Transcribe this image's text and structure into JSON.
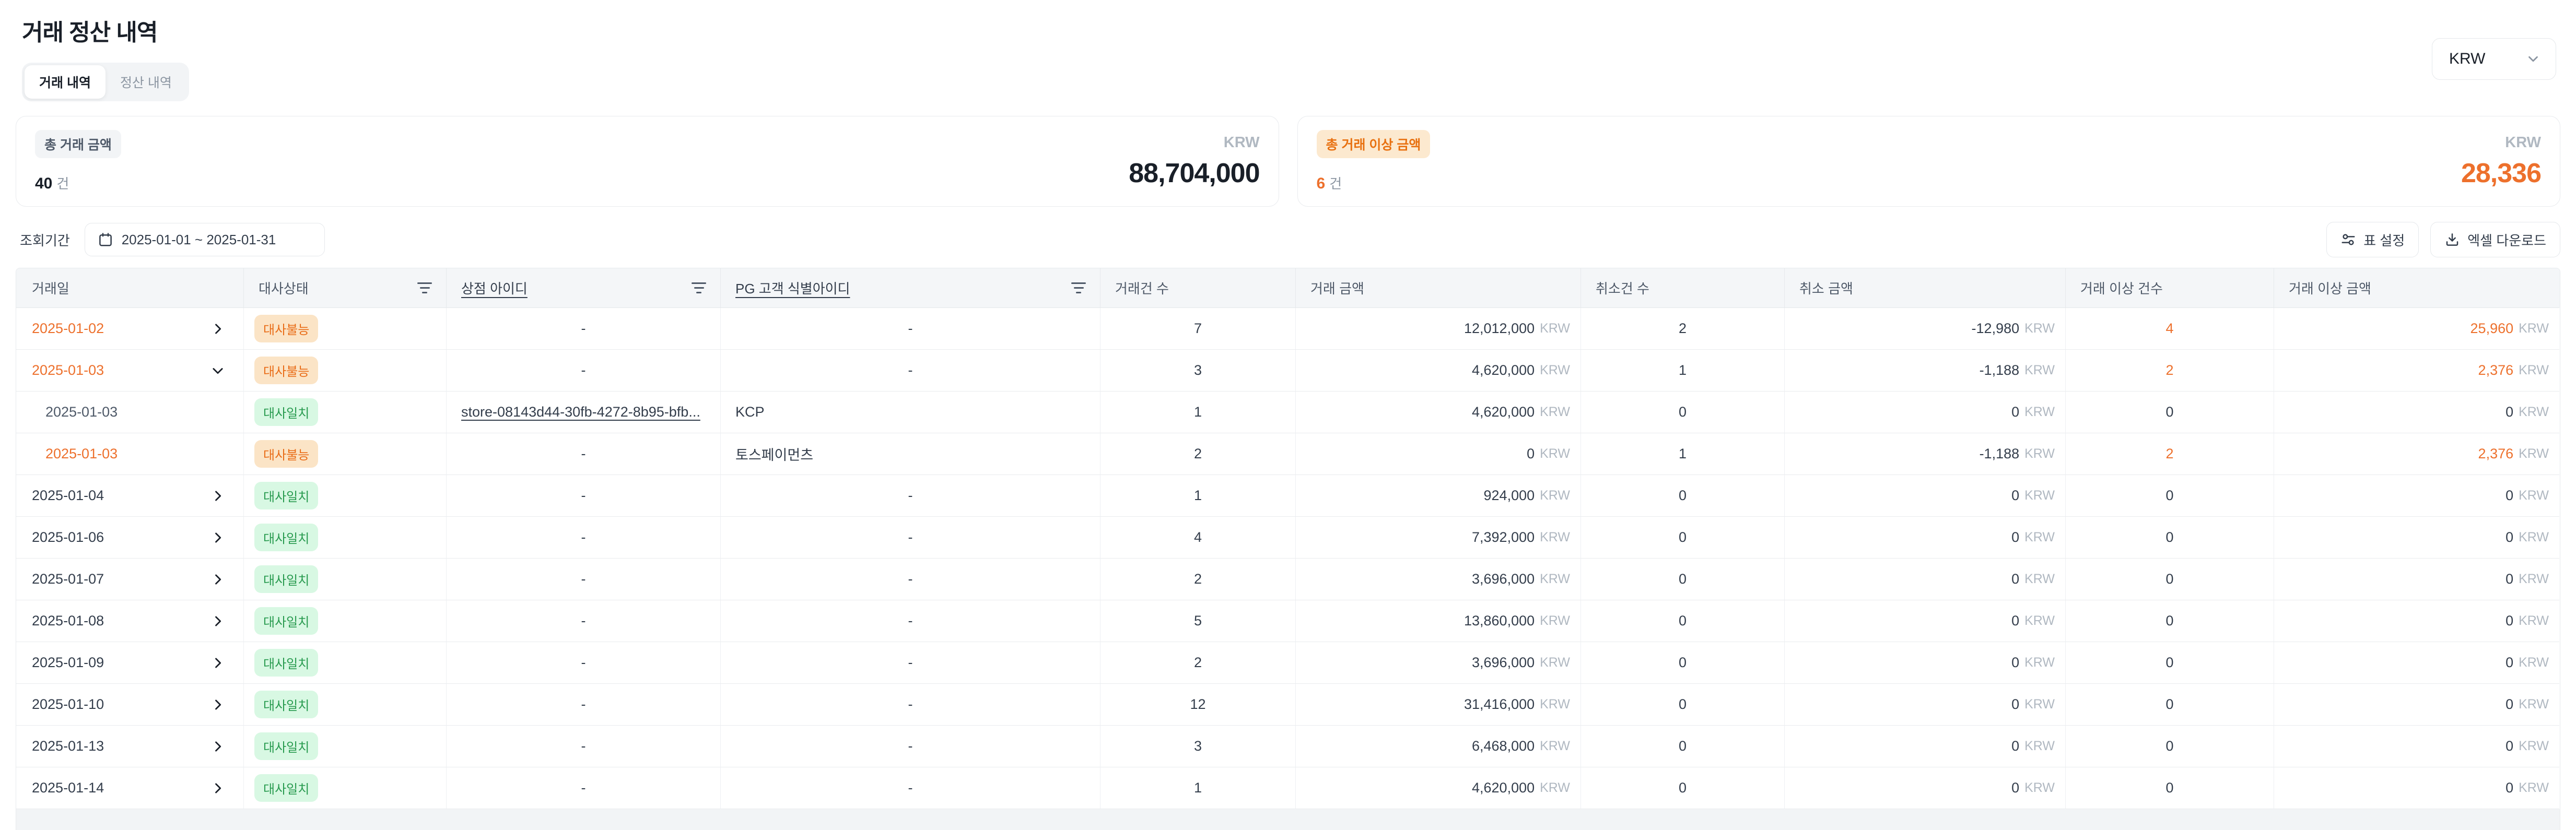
{
  "page": {
    "title": "거래 정산 내역"
  },
  "tabs": [
    {
      "label": "거래 내역",
      "active": true
    },
    {
      "label": "정산 내역",
      "active": false
    }
  ],
  "currency_select": {
    "value": "KRW"
  },
  "summary_cards": [
    {
      "badge": "총 거래 금액",
      "count": "40",
      "count_unit": "건",
      "currency": "KRW",
      "amount": "88,704,000",
      "variant": "default"
    },
    {
      "badge": "총 거래 이상 금액",
      "count": "6",
      "count_unit": "건",
      "currency": "KRW",
      "amount": "28,336",
      "variant": "warning"
    }
  ],
  "filter": {
    "label": "조회기간",
    "date_range": "2025-01-01 ~ 2025-01-31"
  },
  "actions": {
    "table_settings": "표 설정",
    "excel_download": "엑셀 다운로드"
  },
  "colors": {
    "accent_orange": "#ED702C",
    "badge_warning_bg": "#FBE4C6",
    "badge_warning_text": "#E96C17",
    "badge_success_bg": "#D8F8E3",
    "badge_success_text": "#279A4E"
  },
  "table": {
    "currency_suffix": "KRW",
    "columns": [
      {
        "key": "date",
        "label": "거래일",
        "filter": false,
        "underline": false
      },
      {
        "key": "status",
        "label": "대사상태",
        "filter": true,
        "underline": false
      },
      {
        "key": "store",
        "label": "상점 아이디",
        "filter": true,
        "underline": true
      },
      {
        "key": "pg",
        "label": "PG 고객 식별아이디",
        "filter": true,
        "underline": true
      },
      {
        "key": "tx_count",
        "label": "거래건 수",
        "filter": false,
        "underline": false
      },
      {
        "key": "tx_amount",
        "label": "거래 금액",
        "filter": false,
        "underline": false
      },
      {
        "key": "cancel_count",
        "label": "취소건 수",
        "filter": false,
        "underline": false
      },
      {
        "key": "cancel_amount",
        "label": "취소 금액",
        "filter": false,
        "underline": false
      },
      {
        "key": "anomaly_count",
        "label": "거래 이상 건수",
        "filter": false,
        "underline": false
      },
      {
        "key": "anomaly_amount",
        "label": "거래 이상 금액",
        "filter": false,
        "underline": false
      }
    ],
    "rows": [
      {
        "date": "2025-01-02",
        "date_variant": "orange",
        "indent": false,
        "expand": "right",
        "status": "대사불능",
        "status_variant": "warning",
        "store": "-",
        "store_is_link": false,
        "pg": "-",
        "tx_count": "7",
        "tx_amount": "12,012,000",
        "cancel_count": "2",
        "cancel_amount": "-12,980",
        "anomaly_count": "4",
        "anomaly_amount": "25,960",
        "anomaly": true
      },
      {
        "date": "2025-01-03",
        "date_variant": "orange",
        "indent": false,
        "expand": "down",
        "status": "대사불능",
        "status_variant": "warning",
        "store": "-",
        "store_is_link": false,
        "pg": "-",
        "tx_count": "3",
        "tx_amount": "4,620,000",
        "cancel_count": "1",
        "cancel_amount": "-1,188",
        "anomaly_count": "2",
        "anomaly_amount": "2,376",
        "anomaly": true
      },
      {
        "date": "2025-01-03",
        "date_variant": "gray",
        "indent": true,
        "expand": null,
        "status": "대사일치",
        "status_variant": "success",
        "store": "store-08143d44-30fb-4272-8b95-bfb...",
        "store_is_link": true,
        "pg": "KCP",
        "tx_count": "1",
        "tx_amount": "4,620,000",
        "cancel_count": "0",
        "cancel_amount": "0",
        "anomaly_count": "0",
        "anomaly_amount": "0",
        "anomaly": false
      },
      {
        "date": "2025-01-03",
        "date_variant": "orange",
        "indent": true,
        "expand": null,
        "status": "대사불능",
        "status_variant": "warning",
        "store": "-",
        "store_is_link": false,
        "pg": "토스페이먼츠",
        "tx_count": "2",
        "tx_amount": "0",
        "cancel_count": "1",
        "cancel_amount": "-1,188",
        "anomaly_count": "2",
        "anomaly_amount": "2,376",
        "anomaly": true
      },
      {
        "date": "2025-01-04",
        "date_variant": "normal",
        "indent": false,
        "expand": "right",
        "status": "대사일치",
        "status_variant": "success",
        "store": "-",
        "store_is_link": false,
        "pg": "-",
        "tx_count": "1",
        "tx_amount": "924,000",
        "cancel_count": "0",
        "cancel_amount": "0",
        "anomaly_count": "0",
        "anomaly_amount": "0",
        "anomaly": false
      },
      {
        "date": "2025-01-06",
        "date_variant": "normal",
        "indent": false,
        "expand": "right",
        "status": "대사일치",
        "status_variant": "success",
        "store": "-",
        "store_is_link": false,
        "pg": "-",
        "tx_count": "4",
        "tx_amount": "7,392,000",
        "cancel_count": "0",
        "cancel_amount": "0",
        "anomaly_count": "0",
        "anomaly_amount": "0",
        "anomaly": false
      },
      {
        "date": "2025-01-07",
        "date_variant": "normal",
        "indent": false,
        "expand": "right",
        "status": "대사일치",
        "status_variant": "success",
        "store": "-",
        "store_is_link": false,
        "pg": "-",
        "tx_count": "2",
        "tx_amount": "3,696,000",
        "cancel_count": "0",
        "cancel_amount": "0",
        "anomaly_count": "0",
        "anomaly_amount": "0",
        "anomaly": false
      },
      {
        "date": "2025-01-08",
        "date_variant": "normal",
        "indent": false,
        "expand": "right",
        "status": "대사일치",
        "status_variant": "success",
        "store": "-",
        "store_is_link": false,
        "pg": "-",
        "tx_count": "5",
        "tx_amount": "13,860,000",
        "cancel_count": "0",
        "cancel_amount": "0",
        "anomaly_count": "0",
        "anomaly_amount": "0",
        "anomaly": false
      },
      {
        "date": "2025-01-09",
        "date_variant": "normal",
        "indent": false,
        "expand": "right",
        "status": "대사일치",
        "status_variant": "success",
        "store": "-",
        "store_is_link": false,
        "pg": "-",
        "tx_count": "2",
        "tx_amount": "3,696,000",
        "cancel_count": "0",
        "cancel_amount": "0",
        "anomaly_count": "0",
        "anomaly_amount": "0",
        "anomaly": false
      },
      {
        "date": "2025-01-10",
        "date_variant": "normal",
        "indent": false,
        "expand": "right",
        "status": "대사일치",
        "status_variant": "success",
        "store": "-",
        "store_is_link": false,
        "pg": "-",
        "tx_count": "12",
        "tx_amount": "31,416,000",
        "cancel_count": "0",
        "cancel_amount": "0",
        "anomaly_count": "0",
        "anomaly_amount": "0",
        "anomaly": false
      },
      {
        "date": "2025-01-13",
        "date_variant": "normal",
        "indent": false,
        "expand": "right",
        "status": "대사일치",
        "status_variant": "success",
        "store": "-",
        "store_is_link": false,
        "pg": "-",
        "tx_count": "3",
        "tx_amount": "6,468,000",
        "cancel_count": "0",
        "cancel_amount": "0",
        "anomaly_count": "0",
        "anomaly_amount": "0",
        "anomaly": false
      },
      {
        "date": "2025-01-14",
        "date_variant": "normal",
        "indent": false,
        "expand": "right",
        "status": "대사일치",
        "status_variant": "success",
        "store": "-",
        "store_is_link": false,
        "pg": "-",
        "tx_count": "1",
        "tx_amount": "4,620,000",
        "cancel_count": "0",
        "cancel_amount": "0",
        "anomaly_count": "0",
        "anomaly_amount": "0",
        "anomaly": false
      }
    ]
  }
}
